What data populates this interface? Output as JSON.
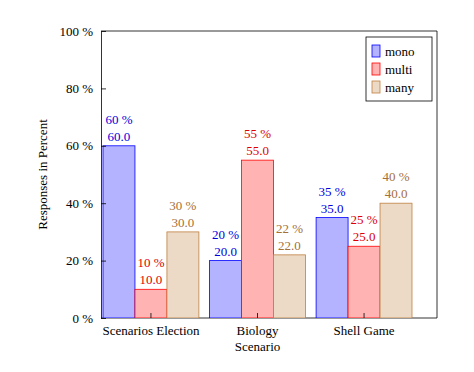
{
  "chart_data": {
    "type": "bar",
    "y_label": "Responses in Percent",
    "categories": [
      "Scenarios Election",
      "Biology\nScenario",
      "Shell Game"
    ],
    "series": [
      {
        "name": "mono",
        "color": "#0000ff",
        "values": [
          60,
          20,
          35
        ],
        "value_labels": [
          [
            "60 %",
            "60.0"
          ],
          [
            "20 %",
            "20.0"
          ],
          [
            "35 %",
            "35.0"
          ]
        ]
      },
      {
        "name": "multi",
        "color": "#ff0000",
        "values": [
          10,
          55,
          25
        ],
        "value_labels": [
          [
            "10 %",
            "10.0"
          ],
          [
            "55 %",
            "55.0"
          ],
          [
            "25 %",
            "25.0"
          ]
        ]
      },
      {
        "name": "many",
        "color": "#bf8040",
        "values": [
          30,
          22,
          40
        ],
        "value_labels": [
          [
            "30 %",
            "30.0"
          ],
          [
            "22 %",
            "22.0"
          ],
          [
            "40 %",
            "40.0"
          ]
        ]
      }
    ],
    "ylim": [
      0,
      100
    ],
    "yticks": [
      {
        "value": 0,
        "label": "0 %"
      },
      {
        "value": 20,
        "label": "20 %"
      },
      {
        "value": 40,
        "label": "40 %"
      },
      {
        "value": 60,
        "label": "60 %"
      },
      {
        "value": 80,
        "label": "80 %"
      },
      {
        "value": 100,
        "label": "100 %"
      }
    ],
    "grid": false,
    "legend": "north east",
    "data_labels": true
  }
}
